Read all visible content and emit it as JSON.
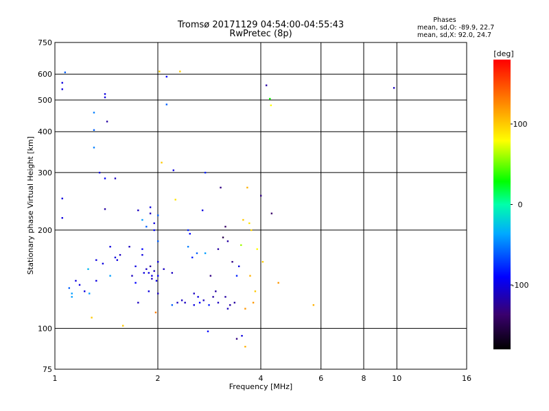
{
  "chart_data": {
    "type": "scatter",
    "title": "Tromsø 20171129 04:54:00-04:55:43",
    "subtitle": "RwPretec (8p)",
    "xlabel": "Frequency [MHz]",
    "ylabel": "Stationary phase Virtual Height [km]",
    "xscale": "log",
    "yscale": "log",
    "xlim": [
      1,
      16
    ],
    "ylim": [
      75,
      750
    ],
    "x_ticks": [
      1,
      2,
      4,
      6,
      8,
      10,
      16
    ],
    "y_ticks": [
      75,
      100,
      200,
      300,
      400,
      500,
      600,
      750
    ],
    "grid": true,
    "colorbar": {
      "label": "[deg]",
      "range": [
        -180,
        180
      ],
      "ticks": [
        100,
        0,
        -100
      ]
    },
    "stats": {
      "heading": "Phases",
      "line1": "mean, sd,O: -89.9, 22.7",
      "line2": "mean, sd,X:  92.0, 24.7"
    },
    "series": [
      {
        "points": [
          [
            1.05,
            540,
            -100
          ],
          [
            1.05,
            250,
            -100
          ],
          [
            1.05,
            218,
            -100
          ],
          [
            1.07,
            608,
            -60
          ],
          [
            1.05,
            565,
            -100
          ],
          [
            1.1,
            133,
            -60
          ],
          [
            1.12,
            128,
            -40
          ],
          [
            1.12,
            125,
            -40
          ],
          [
            1.15,
            140,
            -100
          ],
          [
            1.18,
            136,
            -100
          ],
          [
            1.22,
            130,
            -100
          ],
          [
            1.25,
            152,
            -30
          ],
          [
            1.26,
            128,
            -40
          ],
          [
            1.28,
            108,
            100
          ],
          [
            1.3,
            458,
            -50
          ],
          [
            1.3,
            405,
            -60
          ],
          [
            1.3,
            358,
            -50
          ],
          [
            1.32,
            162,
            -100
          ],
          [
            1.32,
            140,
            -100
          ],
          [
            1.35,
            300,
            -100
          ],
          [
            1.38,
            158,
            -100
          ],
          [
            1.4,
            522,
            -100
          ],
          [
            1.4,
            510,
            -100
          ],
          [
            1.4,
            232,
            -120
          ],
          [
            1.4,
            288,
            -90
          ],
          [
            1.42,
            430,
            -120
          ],
          [
            1.45,
            178,
            -100
          ],
          [
            1.45,
            145,
            -40
          ],
          [
            1.5,
            288,
            -110
          ],
          [
            1.5,
            165,
            -100
          ],
          [
            1.52,
            162,
            -100
          ],
          [
            1.55,
            168,
            -110
          ],
          [
            1.58,
            102,
            100
          ],
          [
            1.65,
            178,
            -110
          ],
          [
            1.68,
            145,
            -110
          ],
          [
            1.72,
            155,
            -100
          ],
          [
            1.72,
            138,
            -90
          ],
          [
            1.75,
            230,
            -110
          ],
          [
            1.75,
            120,
            -110
          ],
          [
            1.8,
            215,
            -40
          ],
          [
            1.8,
            175,
            -90
          ],
          [
            1.8,
            168,
            -100
          ],
          [
            1.82,
            148,
            -100
          ],
          [
            1.85,
            205,
            -60
          ],
          [
            1.85,
            152,
            -110
          ],
          [
            1.88,
            148,
            -100
          ],
          [
            1.88,
            130,
            -100
          ],
          [
            1.9,
            235,
            -100
          ],
          [
            1.9,
            225,
            -110
          ],
          [
            1.9,
            155,
            -120
          ],
          [
            1.92,
            145,
            -100
          ],
          [
            1.92,
            142,
            -110
          ],
          [
            1.95,
            210,
            -100
          ],
          [
            1.95,
            200,
            -90
          ],
          [
            1.95,
            150,
            -110
          ],
          [
            1.98,
            140,
            -100
          ],
          [
            2.0,
            222,
            -60
          ],
          [
            2.0,
            185,
            -60
          ],
          [
            2.0,
            160,
            -100
          ],
          [
            2.0,
            145,
            -90
          ],
          [
            2.0,
            128,
            -110
          ],
          [
            1.97,
            112,
            130
          ],
          [
            2.02,
            612,
            100
          ],
          [
            2.05,
            322,
            100
          ],
          [
            2.08,
            152,
            -110
          ],
          [
            2.12,
            590,
            -90
          ],
          [
            2.12,
            485,
            -60
          ],
          [
            2.2,
            148,
            -110
          ],
          [
            2.2,
            118,
            -60
          ],
          [
            2.22,
            305,
            -100
          ],
          [
            2.25,
            248,
            90
          ],
          [
            2.28,
            120,
            -110
          ],
          [
            2.32,
            612,
            100
          ],
          [
            2.35,
            122,
            -110
          ],
          [
            2.4,
            120,
            -110
          ],
          [
            2.45,
            200,
            -80
          ],
          [
            2.45,
            178,
            -50
          ],
          [
            2.48,
            195,
            -90
          ],
          [
            2.52,
            165,
            -80
          ],
          [
            2.55,
            128,
            -110
          ],
          [
            2.55,
            118,
            -100
          ],
          [
            2.6,
            170,
            -60
          ],
          [
            2.62,
            125,
            -100
          ],
          [
            2.65,
            120,
            -90
          ],
          [
            2.7,
            230,
            -100
          ],
          [
            2.72,
            122,
            -110
          ],
          [
            2.75,
            300,
            -80
          ],
          [
            2.75,
            170,
            -40
          ],
          [
            2.8,
            98,
            -90
          ],
          [
            2.82,
            118,
            -80
          ],
          [
            2.85,
            145,
            -130
          ],
          [
            2.9,
            125,
            -120
          ],
          [
            2.95,
            130,
            -120
          ],
          [
            3.0,
            175,
            -120
          ],
          [
            3.0,
            120,
            -110
          ],
          [
            3.05,
            270,
            -130
          ],
          [
            3.1,
            190,
            -150
          ],
          [
            3.15,
            125,
            -120
          ],
          [
            3.15,
            205,
            -140
          ],
          [
            3.2,
            185,
            -120
          ],
          [
            3.2,
            115,
            -110
          ],
          [
            3.25,
            118,
            -120
          ],
          [
            3.3,
            160,
            -130
          ],
          [
            3.35,
            120,
            -120
          ],
          [
            3.4,
            93,
            -130
          ],
          [
            3.4,
            145,
            -80
          ],
          [
            3.45,
            155,
            -100
          ],
          [
            3.5,
            180,
            60
          ],
          [
            3.52,
            95,
            -100
          ],
          [
            3.55,
            215,
            100
          ],
          [
            3.6,
            88,
            110
          ],
          [
            3.6,
            115,
            120
          ],
          [
            3.65,
            270,
            110
          ],
          [
            3.7,
            210,
            90
          ],
          [
            3.72,
            145,
            110
          ],
          [
            3.75,
            200,
            95
          ],
          [
            3.8,
            120,
            120
          ],
          [
            3.85,
            130,
            100
          ],
          [
            3.9,
            175,
            80
          ],
          [
            4.0,
            255,
            -130
          ],
          [
            4.05,
            160,
            100
          ],
          [
            4.15,
            555,
            -120
          ],
          [
            4.25,
            505,
            30
          ],
          [
            4.28,
            482,
            80
          ],
          [
            4.3,
            225,
            -140
          ],
          [
            4.5,
            138,
            120
          ],
          [
            5.7,
            118,
            110
          ],
          [
            9.8,
            545,
            -110
          ]
        ]
      }
    ]
  }
}
